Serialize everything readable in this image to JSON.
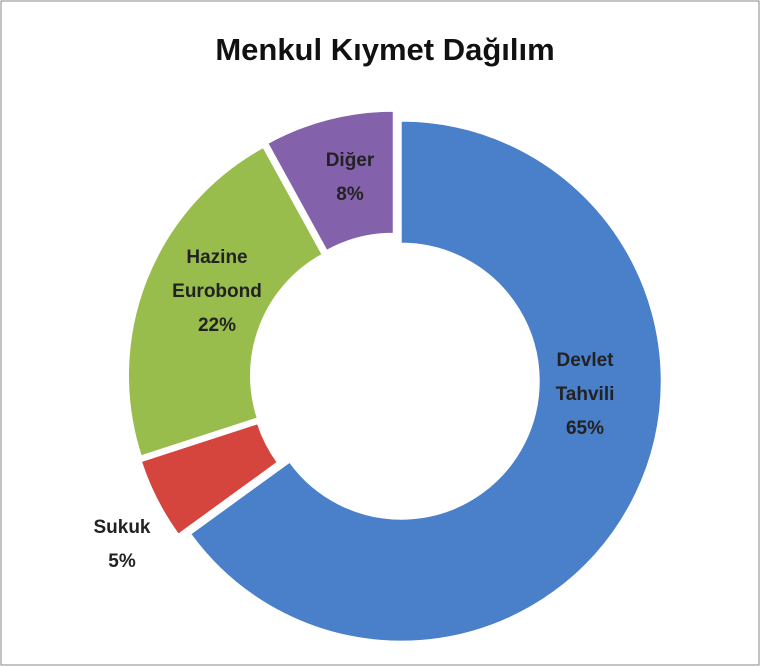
{
  "chart_data": {
    "type": "donut",
    "title": "Menkul Kıymet Dağılım",
    "categories": [
      "Devlet Tahvili",
      "Sukuk",
      "Hazine Eurobond",
      "Diğer"
    ],
    "values": [
      65,
      5,
      22,
      8
    ],
    "value_labels": [
      "65%",
      "5%",
      "22%",
      "8%"
    ],
    "colors": [
      "#4a7fc9",
      "#d6443e",
      "#98bd4c",
      "#8462ab"
    ]
  }
}
